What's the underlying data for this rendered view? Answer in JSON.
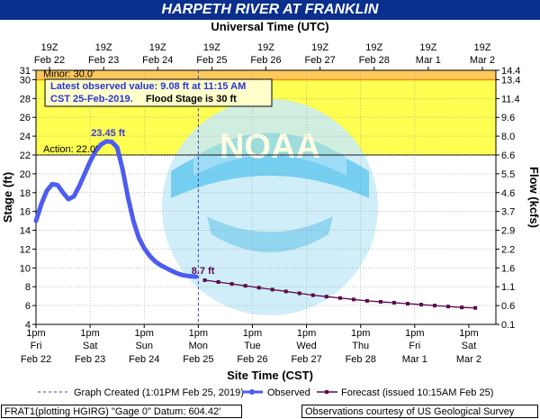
{
  "header": {
    "title": "HARPETH RIVER AT FRANKLIN"
  },
  "chart_data": {
    "type": "line",
    "top_axis_title": "Universal Time (UTC)",
    "xlabel": "Site Time (CST)",
    "ylabel_left": "Stage (ft)",
    "ylabel_right": "Flow (kcfs)",
    "ylim": [
      4,
      31
    ],
    "xlim_days": [
      0,
      8.5
    ],
    "bottom_ticks": [
      {
        "l1": "1pm",
        "l2": "Fri",
        "l3": "Feb 22"
      },
      {
        "l1": "1pm",
        "l2": "Sat",
        "l3": "Feb 23"
      },
      {
        "l1": "1pm",
        "l2": "Sun",
        "l3": "Feb 24"
      },
      {
        "l1": "1pm",
        "l2": "Mon",
        "l3": "Feb 25"
      },
      {
        "l1": "1pm",
        "l2": "Tue",
        "l3": "Feb 26"
      },
      {
        "l1": "1pm",
        "l2": "Wed",
        "l3": "Feb 27"
      },
      {
        "l1": "1pm",
        "l2": "Thu",
        "l3": "Feb 28"
      },
      {
        "l1": "1pm",
        "l2": "Fri",
        "l3": "Mar 1"
      },
      {
        "l1": "1pm",
        "l2": "Sat",
        "l3": "Mar 2"
      }
    ],
    "top_ticks": [
      {
        "l1": "19Z",
        "l2": "Feb 22"
      },
      {
        "l1": "19Z",
        "l2": "Feb 23"
      },
      {
        "l1": "19Z",
        "l2": "Feb 24"
      },
      {
        "l1": "19Z",
        "l2": "Feb 25"
      },
      {
        "l1": "19Z",
        "l2": "Feb 26"
      },
      {
        "l1": "19Z",
        "l2": "Feb 27"
      },
      {
        "l1": "19Z",
        "l2": "Feb 28"
      },
      {
        "l1": "19Z",
        "l2": "Mar 1"
      },
      {
        "l1": "19Z",
        "l2": "Mar 2"
      }
    ],
    "left_ticks": [
      4,
      6,
      8,
      10,
      12,
      14,
      16,
      18,
      20,
      22,
      24,
      26,
      28,
      30,
      31
    ],
    "right_ticks": [
      {
        "stage": 4,
        "label": "0.1"
      },
      {
        "stage": 6,
        "label": "0.6"
      },
      {
        "stage": 8,
        "label": "1.1"
      },
      {
        "stage": 10,
        "label": "1.6"
      },
      {
        "stage": 12,
        "label": "2.2"
      },
      {
        "stage": 14,
        "label": "2.9"
      },
      {
        "stage": 16,
        "label": "3.7"
      },
      {
        "stage": 18,
        "label": "4.6"
      },
      {
        "stage": 20,
        "label": "5.5"
      },
      {
        "stage": 22,
        "label": "6.6"
      },
      {
        "stage": 24,
        "label": "8.0"
      },
      {
        "stage": 26,
        "label": "9.6"
      },
      {
        "stage": 28,
        "label": "11.4"
      },
      {
        "stage": 30,
        "label": "13.4"
      },
      {
        "stage": 31,
        "label": "14.4"
      }
    ],
    "bands": [
      {
        "name": "Minor",
        "label": "Minor: 30.0'",
        "from": 30,
        "to": 31,
        "color": "#ffbf40"
      },
      {
        "name": "Action",
        "label": "Action: 22.0'",
        "from": 22,
        "to": 30,
        "color": "#ffff33"
      }
    ],
    "peak_label": "23.45 ft",
    "last_label": "8.7 ft",
    "info_box": {
      "line1": "Latest observed value: 9.08 ft at 11:15 AM",
      "line2a": "CST 25-Feb-2019.",
      "line2b": "Flood Stage is 30 ft"
    },
    "graph_created_day": 3.0,
    "series": [
      {
        "name": "Observed",
        "color": "#4d5cf0",
        "x": [
          0.0,
          0.1,
          0.2,
          0.3,
          0.4,
          0.5,
          0.6,
          0.7,
          0.8,
          0.9,
          1.0,
          1.1,
          1.2,
          1.3,
          1.4,
          1.5,
          1.6,
          1.7,
          1.8,
          1.9,
          2.0,
          2.1,
          2.2,
          2.3,
          2.4,
          2.5,
          2.6,
          2.7,
          2.8,
          2.9,
          2.96
        ],
        "y": [
          15.0,
          16.8,
          18.2,
          18.9,
          18.8,
          18.0,
          17.3,
          17.6,
          18.7,
          20.0,
          21.3,
          22.4,
          23.1,
          23.45,
          23.4,
          22.8,
          20.5,
          17.5,
          15.0,
          13.2,
          12.1,
          11.3,
          10.7,
          10.3,
          10.0,
          9.7,
          9.45,
          9.25,
          9.15,
          9.1,
          9.08
        ]
      },
      {
        "name": "Forecast (issued 10:15AM Feb 25)",
        "color": "#5a0a4f",
        "x": [
          3.12,
          3.37,
          3.62,
          3.87,
          4.12,
          4.37,
          4.62,
          4.87,
          5.12,
          5.37,
          5.62,
          5.87,
          6.12,
          6.37,
          6.62,
          6.87,
          7.12,
          7.37,
          7.62,
          7.87,
          8.12
        ],
        "y": [
          8.7,
          8.5,
          8.3,
          8.1,
          7.9,
          7.7,
          7.5,
          7.3,
          7.1,
          6.95,
          6.8,
          6.65,
          6.5,
          6.4,
          6.3,
          6.2,
          6.1,
          6.0,
          5.9,
          5.8,
          5.75
        ]
      }
    ]
  },
  "legend": {
    "graph_created": "Graph Created (1:01PM Feb 25, 2019)",
    "observed": "Observed",
    "forecast": "Forecast (issued 10:15AM Feb 25)"
  },
  "footer": {
    "left": "FRAT1(plotting HGIRG) \"Gage 0\" Datum: 604.42'",
    "right": "Observations courtesy of US Geological Survey"
  },
  "watermark": "NOAA"
}
